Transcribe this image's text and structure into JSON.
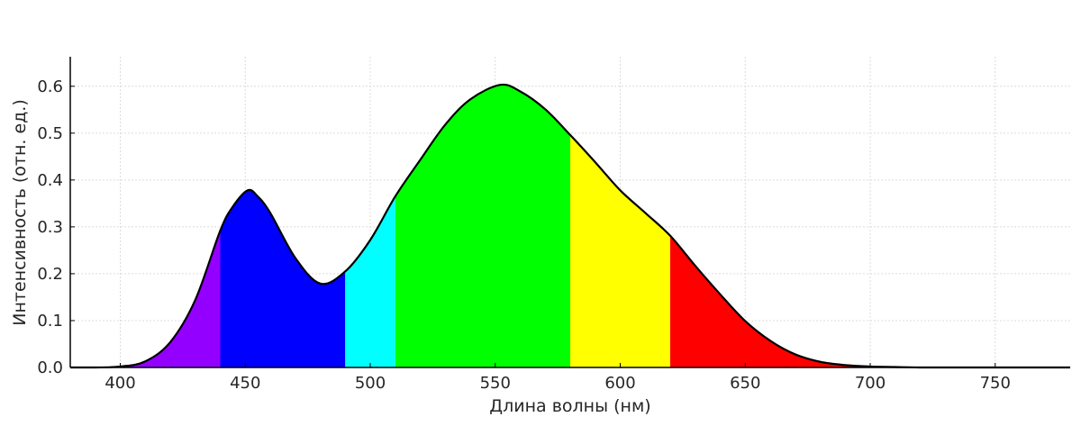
{
  "chart_data": {
    "type": "area",
    "title": "",
    "xlabel": "Длина волны (нм)",
    "ylabel": "Интенсивность (отн. ед.)",
    "xlim": [
      380,
      780
    ],
    "ylim": [
      0,
      0.663
    ],
    "grid": true,
    "xticks": [
      400,
      450,
      500,
      550,
      600,
      650,
      700,
      750
    ],
    "xtick_labels": [
      "400",
      "450",
      "500",
      "550",
      "600",
      "650",
      "700",
      "750"
    ],
    "yticks": [
      0,
      0.1,
      0.2,
      0.3,
      0.4,
      0.5,
      0.6
    ],
    "ytick_labels": [
      "0.0",
      "0.1",
      "0.2",
      "0.3",
      "0.4",
      "0.5",
      "0.6"
    ],
    "x": [
      380,
      390,
      400,
      410,
      420,
      430,
      440,
      445,
      451,
      455,
      460,
      470,
      480,
      490,
      500,
      510,
      520,
      530,
      540,
      552,
      560,
      570,
      580,
      590,
      600,
      610,
      620,
      630,
      640,
      650,
      660,
      670,
      680,
      690,
      700,
      710,
      720,
      740,
      760,
      780
    ],
    "y": [
      0,
      0,
      0.002,
      0.013,
      0.054,
      0.144,
      0.292,
      0.343,
      0.378,
      0.365,
      0.33,
      0.234,
      0.179,
      0.205,
      0.272,
      0.365,
      0.443,
      0.518,
      0.572,
      0.603,
      0.589,
      0.551,
      0.496,
      0.438,
      0.378,
      0.33,
      0.281,
      0.217,
      0.156,
      0.099,
      0.057,
      0.028,
      0.012,
      0.005,
      0.002,
      0.001,
      0,
      0,
      0,
      0
    ],
    "bands": [
      {
        "name": "violet",
        "from": 380,
        "to": 440,
        "color": "#9400ff"
      },
      {
        "name": "blue",
        "from": 440,
        "to": 490,
        "color": "#0000ff"
      },
      {
        "name": "cyan",
        "from": 490,
        "to": 510,
        "color": "#00ffff"
      },
      {
        "name": "green",
        "from": 510,
        "to": 580,
        "color": "#00ff00"
      },
      {
        "name": "yellow",
        "from": 580,
        "to": 620,
        "color": "#ffff00"
      },
      {
        "name": "red",
        "from": 620,
        "to": 780,
        "color": "#ff0000"
      }
    ]
  }
}
